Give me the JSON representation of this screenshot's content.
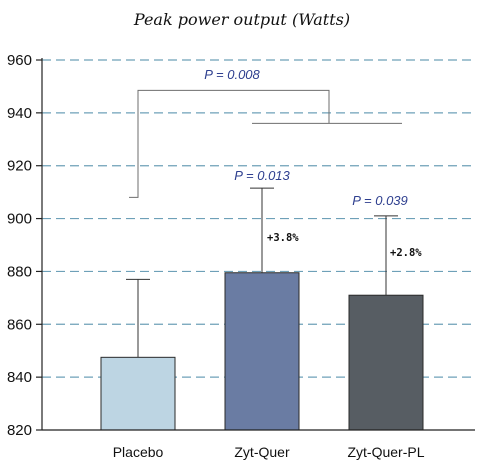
{
  "chart_data": {
    "type": "bar",
    "title": "Peak power output (Watts)",
    "xlabel": "",
    "ylabel": "",
    "ylim": [
      820,
      960
    ],
    "yticks": [
      820,
      840,
      860,
      880,
      900,
      920,
      940,
      960
    ],
    "ytick_labels": [
      "820",
      "840",
      "860",
      "880",
      "900",
      "920",
      "940",
      "960"
    ],
    "grid": true,
    "categories": [
      "Placebo",
      "Zyt-Quer",
      "Zyt-Quer-PL"
    ],
    "values": [
      847.5,
      879.5,
      871
    ],
    "error_upper": [
      877,
      911.5,
      901
    ],
    "bar_colors": [
      "#bdd5e3",
      "#6a7ca3",
      "#575d63"
    ],
    "grid_color": "#6ea0b8",
    "pvalue_color": "#2e3f8f",
    "annotations": {
      "pvalues": [
        {
          "text": "P = 0.008",
          "target": "Placebo vs Zyt-Quer & Zyt-Quer-PL"
        },
        {
          "text": "P = 0.013",
          "target": "Zyt-Quer"
        },
        {
          "text": "P = 0.039",
          "target": "Zyt-Quer-PL"
        }
      ],
      "percent_changes": [
        {
          "text": "+3.8%",
          "target": "Zyt-Quer"
        },
        {
          "text": "+2.8%",
          "target": "Zyt-Quer-PL"
        }
      ]
    }
  }
}
